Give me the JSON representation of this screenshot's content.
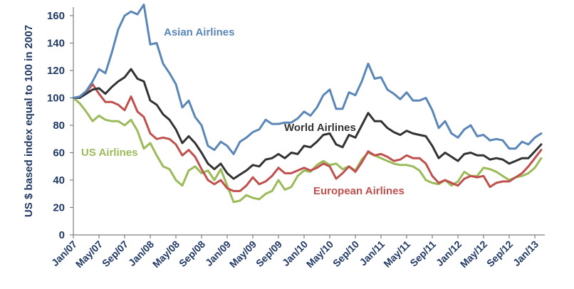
{
  "chart_data": {
    "type": "line",
    "title": "",
    "xlabel": "",
    "ylabel": "US $ based index equal to 100 in 2007",
    "ylim": [
      0,
      170
    ],
    "yticks": [
      0,
      20,
      40,
      60,
      80,
      100,
      120,
      140,
      160
    ],
    "grid": false,
    "x_tick_labels": [
      "Jan/07",
      "May/07",
      "Sep/07",
      "Jan/08",
      "May/08",
      "Sep/08",
      "Jan/09",
      "May/09",
      "Sep/09",
      "Jan/10",
      "May/10",
      "Sep/10",
      "Jan/11",
      "May/11",
      "Sep/11",
      "Jan/12",
      "May/12",
      "Sep/12",
      "Jan/13"
    ],
    "x": [
      "Jan/07",
      "Feb/07",
      "Mar/07",
      "Apr/07",
      "May/07",
      "Jun/07",
      "Jul/07",
      "Aug/07",
      "Sep/07",
      "Oct/07",
      "Nov/07",
      "Dec/07",
      "Jan/08",
      "Feb/08",
      "Mar/08",
      "Apr/08",
      "May/08",
      "Jun/08",
      "Jul/08",
      "Aug/08",
      "Sep/08",
      "Oct/08",
      "Nov/08",
      "Dec/08",
      "Jan/09",
      "Feb/09",
      "Mar/09",
      "Apr/09",
      "May/09",
      "Jun/09",
      "Jul/09",
      "Aug/09",
      "Sep/09",
      "Oct/09",
      "Nov/09",
      "Dec/09",
      "Jan/10",
      "Feb/10",
      "Mar/10",
      "Apr/10",
      "May/10",
      "Jun/10",
      "Jul/10",
      "Aug/10",
      "Sep/10",
      "Oct/10",
      "Nov/10",
      "Dec/10",
      "Jan/11",
      "Feb/11",
      "Mar/11",
      "Apr/11",
      "May/11",
      "Jun/11",
      "Jul/11",
      "Aug/11",
      "Sep/11",
      "Oct/11",
      "Nov/11",
      "Dec/11",
      "Jan/12",
      "Feb/12",
      "Mar/12",
      "Apr/12",
      "May/12",
      "Jun/12",
      "Jul/12",
      "Aug/12",
      "Sep/12",
      "Oct/12",
      "Nov/12",
      "Dec/12",
      "Jan/13",
      "Feb/13"
    ],
    "series": [
      {
        "name": "Asian Airlines",
        "color": "#5b86b8",
        "values": [
          100,
          101,
          105,
          112,
          121,
          118,
          133,
          150,
          160,
          163,
          161,
          168,
          139,
          140,
          125,
          118,
          110,
          93,
          98,
          86,
          80,
          65,
          62,
          68,
          65,
          59,
          68,
          71,
          75,
          77,
          84,
          81,
          81,
          82,
          82,
          85,
          90,
          87,
          93,
          102,
          106,
          92,
          92,
          104,
          102,
          112,
          125,
          114,
          115,
          106,
          103,
          99,
          104,
          98,
          98,
          100,
          91,
          78,
          83,
          74,
          71,
          77,
          80,
          72,
          73,
          69,
          70,
          69,
          63,
          63,
          68,
          66,
          71,
          74
        ]
      },
      {
        "name": "World Airlines",
        "color": "#333333",
        "values": [
          100,
          100,
          103,
          106,
          107,
          103,
          108,
          112,
          115,
          121,
          114,
          112,
          98,
          95,
          88,
          84,
          77,
          67,
          72,
          67,
          60,
          52,
          48,
          52,
          45,
          41,
          44,
          47,
          51,
          50,
          55,
          56,
          59,
          56,
          60,
          59,
          65,
          64,
          68,
          73,
          74,
          66,
          64,
          73,
          71,
          80,
          89,
          83,
          83,
          78,
          75,
          73,
          76,
          74,
          73,
          72,
          65,
          56,
          60,
          57,
          54,
          59,
          60,
          58,
          58,
          55,
          56,
          55,
          52,
          54,
          56,
          56,
          61,
          66
        ]
      },
      {
        "name": "European Airlines",
        "color": "#c0504d",
        "values": [
          100,
          100,
          104,
          110,
          103,
          97,
          97,
          95,
          91,
          101,
          90,
          86,
          74,
          70,
          71,
          70,
          66,
          58,
          62,
          57,
          48,
          40,
          37,
          40,
          34,
          32,
          32,
          36,
          42,
          37,
          39,
          43,
          49,
          45,
          45,
          47,
          49,
          47,
          49,
          52,
          50,
          41,
          45,
          50,
          46,
          53,
          61,
          58,
          59,
          57,
          54,
          55,
          58,
          56,
          56,
          52,
          43,
          38,
          40,
          38,
          36,
          41,
          43,
          42,
          43,
          35,
          38,
          39,
          39,
          42,
          45,
          50,
          56,
          62
        ]
      },
      {
        "name": "US Airlines",
        "color": "#9bbb59",
        "values": [
          100,
          96,
          90,
          83,
          87,
          84,
          83,
          83,
          80,
          84,
          76,
          63,
          67,
          58,
          50,
          48,
          40,
          36,
          47,
          50,
          45,
          47,
          40,
          48,
          36,
          24,
          25,
          29,
          27,
          26,
          30,
          32,
          40,
          33,
          35,
          43,
          47,
          46,
          51,
          54,
          51,
          52,
          48,
          50,
          47,
          55,
          60,
          58,
          56,
          54,
          52,
          51,
          51,
          50,
          47,
          40,
          38,
          37,
          40,
          36,
          39,
          46,
          43,
          43,
          49,
          48,
          46,
          43,
          40,
          42,
          43,
          45,
          49,
          56
        ]
      }
    ]
  }
}
